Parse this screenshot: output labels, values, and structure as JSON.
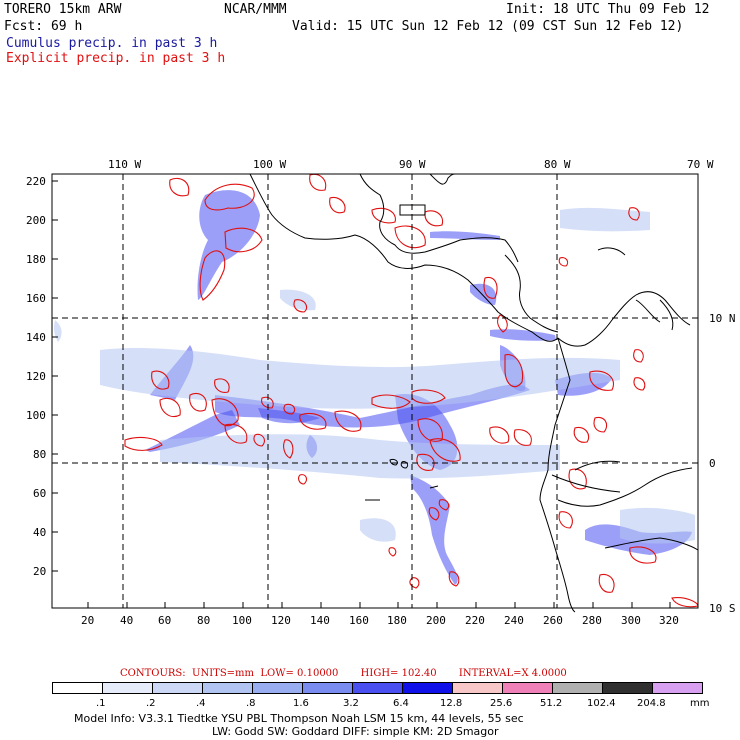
{
  "header": {
    "model": "TORERO  15km ARW",
    "org": "NCAR/MMM",
    "init": "Init: 18 UTC Thu 09 Feb 12",
    "fcst": "Fcst:   69 h",
    "valid": "Valid: 15 UTC Sun 12 Feb 12 (09 CST Sun 12 Feb 12)",
    "line_cumulus": "Cumulus precip. in past 3 h",
    "line_explicit": "Explicit precip. in past 3 h",
    "cumulus_color": "#1a1aa0",
    "explicit_color": "#e01010"
  },
  "map": {
    "top_lon_labels": [
      "110 W",
      "100 W",
      "90 W",
      "80 W",
      "70 W"
    ],
    "right_lat_labels": [
      "10 N",
      "0",
      "10 S"
    ],
    "y_ticks": [
      "220",
      "200",
      "180",
      "160",
      "140",
      "120",
      "100",
      "80",
      "60",
      "40",
      "20"
    ],
    "x_ticks": [
      "20",
      "40",
      "60",
      "80",
      "100",
      "120",
      "140",
      "160",
      "180",
      "200",
      "220",
      "240",
      "260",
      "280",
      "300",
      "320"
    ]
  },
  "contours_line": {
    "label": "CONTOURS:",
    "units": "UNITS=mm",
    "low": "LOW= 0.10000",
    "high": "HIGH= 102.40",
    "interval": "INTERVAL=X  4.0000",
    "color": "#cc0000"
  },
  "colorbar": {
    "labels": [
      ".1",
      ".2",
      ".4",
      ".8",
      "1.6",
      "3.2",
      "6.4",
      "12.8",
      "25.6",
      "51.2",
      "102.4",
      "204.8"
    ],
    "colors": [
      "#ffffff",
      "#e6ecfa",
      "#ccd8f6",
      "#b2c4f2",
      "#99aef0",
      "#7a8cf0",
      "#4a50f0",
      "#1010e8",
      "#f8c8c8",
      "#f080b8",
      "#b0b0b0",
      "#303030",
      "#d8a0f0"
    ],
    "unit": "mm"
  },
  "footer": {
    "line1": "Model Info: V3.3.1   Tiedtke YSU PBL  Thompson    Noah LSM  15 km,   44 levels,   55 sec",
    "line2": "LW: Godd SW: Goddard DIFF: simple KM: 2D Smagor"
  }
}
